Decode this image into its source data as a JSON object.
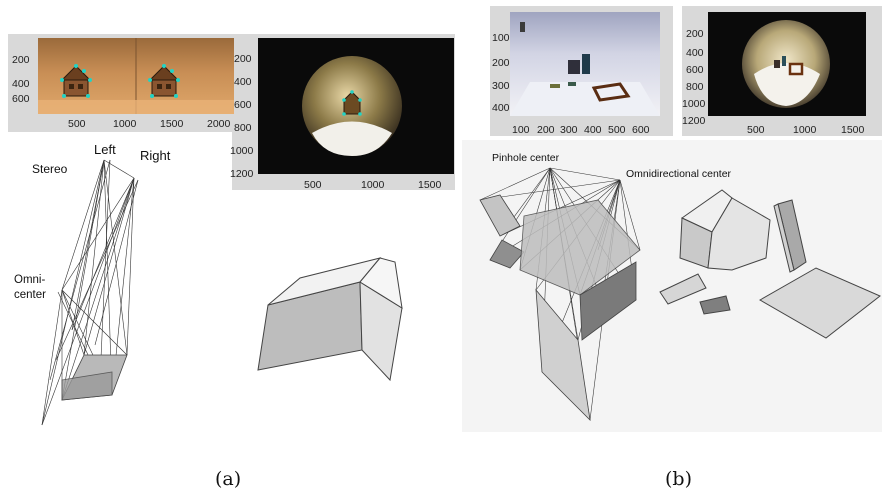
{
  "panel_a": {
    "camera_view_xticks": [
      "500",
      "1000",
      "1500",
      "2000"
    ],
    "camera_view_yticks": [
      "200",
      "400",
      "600"
    ],
    "omni_view_xticks": [
      "500",
      "1000",
      "1500"
    ],
    "omni_view_yticks": [
      "200",
      "400",
      "600",
      "800",
      "1000",
      "1200"
    ],
    "labels": {
      "stereo": "Stereo",
      "left": "Left",
      "right": "Right",
      "omni_line1": "Omni-",
      "omni_line2": "center"
    },
    "caption": "(a)"
  },
  "panel_b": {
    "pinhole_view_xticks": [
      "100",
      "200",
      "300",
      "400",
      "500",
      "600"
    ],
    "pinhole_view_yticks": [
      "100",
      "200",
      "300",
      "400"
    ],
    "omni_view_xticks": [
      "500",
      "1000",
      "1500"
    ],
    "omni_view_yticks": [
      "200",
      "400",
      "600",
      "800",
      "1000",
      "1200"
    ],
    "labels": {
      "pinhole_center": "Pinhole center",
      "omni_center": "Omnidirectional center"
    },
    "caption": "(b)"
  },
  "colors": {
    "axis_bg": "#d9d9d9",
    "stereo_photo": "#c88e55",
    "omni_background": "#0a0a0a",
    "feature_marker": "#22d3c5"
  }
}
